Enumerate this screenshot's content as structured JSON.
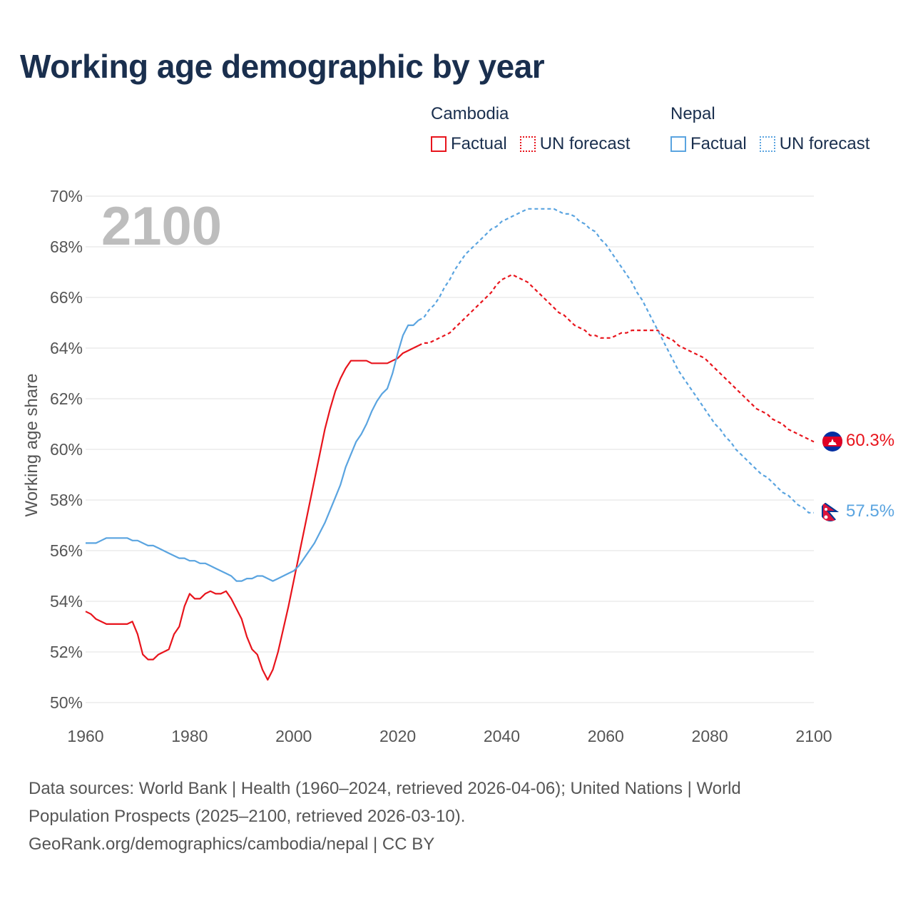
{
  "title": "Working age demographic by year",
  "year_watermark": "2100",
  "legend": {
    "cambodia": {
      "name": "Cambodia",
      "factual": "Factual",
      "forecast": "UN forecast",
      "color": "#e8141c"
    },
    "nepal": {
      "name": "Nepal",
      "factual": "Factual",
      "forecast": "UN forecast",
      "color": "#5aa4e0"
    }
  },
  "end_labels": {
    "cambodia": "60.3%",
    "nepal": "57.5%"
  },
  "sources": {
    "line1": "Data sources: World Bank | Health (1960–2024, retrieved 2026-04-06); United Nations | World",
    "line2": "Population Prospects (2025–2100, retrieved 2026-03-10).",
    "line3": "GeoRank.org/demographics/cambodia/nepal | CC BY"
  },
  "chart_data": {
    "type": "line",
    "title": "Working age demographic by year",
    "xlabel": "",
    "ylabel": "Working age share",
    "xlim": [
      1960,
      2100
    ],
    "ylim": [
      50,
      70
    ],
    "x_ticks": [
      1960,
      1980,
      2000,
      2020,
      2040,
      2060,
      2080,
      2100
    ],
    "x_tick_labels": [
      "1960",
      "1980",
      "2000",
      "2020",
      "2040",
      "2060",
      "2080",
      "2100"
    ],
    "y_ticks": [
      50,
      52,
      54,
      56,
      58,
      60,
      62,
      64,
      66,
      68,
      70
    ],
    "y_tick_labels": [
      "50%",
      "52%",
      "54%",
      "56%",
      "58%",
      "60%",
      "62%",
      "64%",
      "66%",
      "68%",
      "70%"
    ],
    "grid": true,
    "legend_position": "top-right",
    "factual_end_year": 2024,
    "series": [
      {
        "name": "Cambodia",
        "color": "#e8141c",
        "points": [
          [
            1960,
            53.6
          ],
          [
            1961,
            53.5
          ],
          [
            1962,
            53.3
          ],
          [
            1963,
            53.2
          ],
          [
            1964,
            53.1
          ],
          [
            1965,
            53.1
          ],
          [
            1966,
            53.1
          ],
          [
            1967,
            53.1
          ],
          [
            1968,
            53.1
          ],
          [
            1969,
            53.2
          ],
          [
            1970,
            52.7
          ],
          [
            1971,
            51.9
          ],
          [
            1972,
            51.7
          ],
          [
            1973,
            51.7
          ],
          [
            1974,
            51.9
          ],
          [
            1975,
            52.0
          ],
          [
            1976,
            52.1
          ],
          [
            1977,
            52.7
          ],
          [
            1978,
            53.0
          ],
          [
            1979,
            53.8
          ],
          [
            1980,
            54.3
          ],
          [
            1981,
            54.1
          ],
          [
            1982,
            54.1
          ],
          [
            1983,
            54.3
          ],
          [
            1984,
            54.4
          ],
          [
            1985,
            54.3
          ],
          [
            1986,
            54.3
          ],
          [
            1987,
            54.4
          ],
          [
            1988,
            54.1
          ],
          [
            1989,
            53.7
          ],
          [
            1990,
            53.3
          ],
          [
            1991,
            52.6
          ],
          [
            1992,
            52.1
          ],
          [
            1993,
            51.9
          ],
          [
            1994,
            51.3
          ],
          [
            1995,
            50.9
          ],
          [
            1996,
            51.3
          ],
          [
            1997,
            52.0
          ],
          [
            1998,
            52.9
          ],
          [
            1999,
            53.8
          ],
          [
            2000,
            54.8
          ],
          [
            2001,
            55.8
          ],
          [
            2002,
            56.8
          ],
          [
            2003,
            57.8
          ],
          [
            2004,
            58.8
          ],
          [
            2005,
            59.8
          ],
          [
            2006,
            60.8
          ],
          [
            2007,
            61.6
          ],
          [
            2008,
            62.3
          ],
          [
            2009,
            62.8
          ],
          [
            2010,
            63.2
          ],
          [
            2011,
            63.5
          ],
          [
            2012,
            63.5
          ],
          [
            2013,
            63.5
          ],
          [
            2014,
            63.5
          ],
          [
            2015,
            63.4
          ],
          [
            2016,
            63.4
          ],
          [
            2017,
            63.4
          ],
          [
            2018,
            63.4
          ],
          [
            2019,
            63.5
          ],
          [
            2020,
            63.6
          ],
          [
            2021,
            63.8
          ],
          [
            2022,
            63.9
          ],
          [
            2023,
            64.0
          ],
          [
            2024,
            64.1
          ],
          [
            2025,
            64.2
          ],
          [
            2026,
            64.2
          ],
          [
            2027,
            64.3
          ],
          [
            2028,
            64.4
          ],
          [
            2029,
            64.5
          ],
          [
            2030,
            64.6
          ],
          [
            2031,
            64.8
          ],
          [
            2032,
            65.0
          ],
          [
            2033,
            65.2
          ],
          [
            2034,
            65.4
          ],
          [
            2035,
            65.6
          ],
          [
            2036,
            65.8
          ],
          [
            2037,
            66.0
          ],
          [
            2038,
            66.2
          ],
          [
            2039,
            66.5
          ],
          [
            2040,
            66.7
          ],
          [
            2041,
            66.8
          ],
          [
            2042,
            66.9
          ],
          [
            2043,
            66.8
          ],
          [
            2044,
            66.7
          ],
          [
            2045,
            66.6
          ],
          [
            2046,
            66.4
          ],
          [
            2047,
            66.2
          ],
          [
            2048,
            66.0
          ],
          [
            2049,
            65.8
          ],
          [
            2050,
            65.6
          ],
          [
            2051,
            65.4
          ],
          [
            2052,
            65.3
          ],
          [
            2053,
            65.1
          ],
          [
            2054,
            64.9
          ],
          [
            2055,
            64.8
          ],
          [
            2056,
            64.7
          ],
          [
            2057,
            64.5
          ],
          [
            2058,
            64.5
          ],
          [
            2059,
            64.4
          ],
          [
            2060,
            64.4
          ],
          [
            2061,
            64.4
          ],
          [
            2062,
            64.5
          ],
          [
            2063,
            64.6
          ],
          [
            2064,
            64.6
          ],
          [
            2065,
            64.7
          ],
          [
            2066,
            64.7
          ],
          [
            2067,
            64.7
          ],
          [
            2068,
            64.7
          ],
          [
            2069,
            64.7
          ],
          [
            2070,
            64.7
          ],
          [
            2071,
            64.5
          ],
          [
            2072,
            64.4
          ],
          [
            2073,
            64.3
          ],
          [
            2074,
            64.1
          ],
          [
            2075,
            64.0
          ],
          [
            2076,
            63.9
          ],
          [
            2077,
            63.8
          ],
          [
            2078,
            63.7
          ],
          [
            2079,
            63.6
          ],
          [
            2080,
            63.4
          ],
          [
            2081,
            63.2
          ],
          [
            2082,
            63.0
          ],
          [
            2083,
            62.8
          ],
          [
            2084,
            62.6
          ],
          [
            2085,
            62.4
          ],
          [
            2086,
            62.2
          ],
          [
            2087,
            62.0
          ],
          [
            2088,
            61.8
          ],
          [
            2089,
            61.6
          ],
          [
            2090,
            61.5
          ],
          [
            2091,
            61.4
          ],
          [
            2092,
            61.2
          ],
          [
            2093,
            61.1
          ],
          [
            2094,
            61.0
          ],
          [
            2095,
            60.8
          ],
          [
            2096,
            60.7
          ],
          [
            2097,
            60.6
          ],
          [
            2098,
            60.5
          ],
          [
            2099,
            60.4
          ],
          [
            2100,
            60.3
          ]
        ]
      },
      {
        "name": "Nepal",
        "color": "#5aa4e0",
        "points": [
          [
            1960,
            56.3
          ],
          [
            1961,
            56.3
          ],
          [
            1962,
            56.3
          ],
          [
            1963,
            56.4
          ],
          [
            1964,
            56.5
          ],
          [
            1965,
            56.5
          ],
          [
            1966,
            56.5
          ],
          [
            1967,
            56.5
          ],
          [
            1968,
            56.5
          ],
          [
            1969,
            56.4
          ],
          [
            1970,
            56.4
          ],
          [
            1971,
            56.3
          ],
          [
            1972,
            56.2
          ],
          [
            1973,
            56.2
          ],
          [
            1974,
            56.1
          ],
          [
            1975,
            56.0
          ],
          [
            1976,
            55.9
          ],
          [
            1977,
            55.8
          ],
          [
            1978,
            55.7
          ],
          [
            1979,
            55.7
          ],
          [
            1980,
            55.6
          ],
          [
            1981,
            55.6
          ],
          [
            1982,
            55.5
          ],
          [
            1983,
            55.5
          ],
          [
            1984,
            55.4
          ],
          [
            1985,
            55.3
          ],
          [
            1986,
            55.2
          ],
          [
            1987,
            55.1
          ],
          [
            1988,
            55.0
          ],
          [
            1989,
            54.8
          ],
          [
            1990,
            54.8
          ],
          [
            1991,
            54.9
          ],
          [
            1992,
            54.9
          ],
          [
            1993,
            55.0
          ],
          [
            1994,
            55.0
          ],
          [
            1995,
            54.9
          ],
          [
            1996,
            54.8
          ],
          [
            1997,
            54.9
          ],
          [
            1998,
            55.0
          ],
          [
            1999,
            55.1
          ],
          [
            2000,
            55.2
          ],
          [
            2001,
            55.4
          ],
          [
            2002,
            55.7
          ],
          [
            2003,
            56.0
          ],
          [
            2004,
            56.3
          ],
          [
            2005,
            56.7
          ],
          [
            2006,
            57.1
          ],
          [
            2007,
            57.6
          ],
          [
            2008,
            58.1
          ],
          [
            2009,
            58.6
          ],
          [
            2010,
            59.3
          ],
          [
            2011,
            59.8
          ],
          [
            2012,
            60.3
          ],
          [
            2013,
            60.6
          ],
          [
            2014,
            61.0
          ],
          [
            2015,
            61.5
          ],
          [
            2016,
            61.9
          ],
          [
            2017,
            62.2
          ],
          [
            2018,
            62.4
          ],
          [
            2019,
            63.0
          ],
          [
            2020,
            63.8
          ],
          [
            2021,
            64.5
          ],
          [
            2022,
            64.9
          ],
          [
            2023,
            64.9
          ],
          [
            2024,
            65.1
          ],
          [
            2025,
            65.2
          ],
          [
            2026,
            65.5
          ],
          [
            2027,
            65.7
          ],
          [
            2028,
            66.0
          ],
          [
            2029,
            66.4
          ],
          [
            2030,
            66.7
          ],
          [
            2031,
            67.1
          ],
          [
            2032,
            67.4
          ],
          [
            2033,
            67.7
          ],
          [
            2034,
            67.9
          ],
          [
            2035,
            68.1
          ],
          [
            2036,
            68.3
          ],
          [
            2037,
            68.5
          ],
          [
            2038,
            68.7
          ],
          [
            2039,
            68.8
          ],
          [
            2040,
            69.0
          ],
          [
            2041,
            69.1
          ],
          [
            2042,
            69.2
          ],
          [
            2043,
            69.3
          ],
          [
            2044,
            69.4
          ],
          [
            2045,
            69.5
          ],
          [
            2046,
            69.5
          ],
          [
            2047,
            69.5
          ],
          [
            2048,
            69.5
          ],
          [
            2049,
            69.5
          ],
          [
            2050,
            69.5
          ],
          [
            2051,
            69.4
          ],
          [
            2052,
            69.3
          ],
          [
            2053,
            69.3
          ],
          [
            2054,
            69.2
          ],
          [
            2055,
            69.0
          ],
          [
            2056,
            68.9
          ],
          [
            2057,
            68.7
          ],
          [
            2058,
            68.6
          ],
          [
            2059,
            68.3
          ],
          [
            2060,
            68.1
          ],
          [
            2061,
            67.8
          ],
          [
            2062,
            67.5
          ],
          [
            2063,
            67.2
          ],
          [
            2064,
            66.9
          ],
          [
            2065,
            66.6
          ],
          [
            2066,
            66.2
          ],
          [
            2067,
            65.9
          ],
          [
            2068,
            65.5
          ],
          [
            2069,
            65.1
          ],
          [
            2070,
            64.7
          ],
          [
            2071,
            64.3
          ],
          [
            2072,
            63.9
          ],
          [
            2073,
            63.5
          ],
          [
            2074,
            63.1
          ],
          [
            2075,
            62.8
          ],
          [
            2076,
            62.5
          ],
          [
            2077,
            62.2
          ],
          [
            2078,
            61.9
          ],
          [
            2079,
            61.6
          ],
          [
            2080,
            61.3
          ],
          [
            2081,
            61.0
          ],
          [
            2082,
            60.8
          ],
          [
            2083,
            60.5
          ],
          [
            2084,
            60.3
          ],
          [
            2085,
            60.0
          ],
          [
            2086,
            59.8
          ],
          [
            2087,
            59.6
          ],
          [
            2088,
            59.4
          ],
          [
            2089,
            59.2
          ],
          [
            2090,
            59.0
          ],
          [
            2091,
            58.9
          ],
          [
            2092,
            58.7
          ],
          [
            2093,
            58.5
          ],
          [
            2094,
            58.3
          ],
          [
            2095,
            58.2
          ],
          [
            2096,
            58.0
          ],
          [
            2097,
            57.8
          ],
          [
            2098,
            57.7
          ],
          [
            2099,
            57.5
          ],
          [
            2100,
            57.5
          ]
        ]
      }
    ]
  }
}
